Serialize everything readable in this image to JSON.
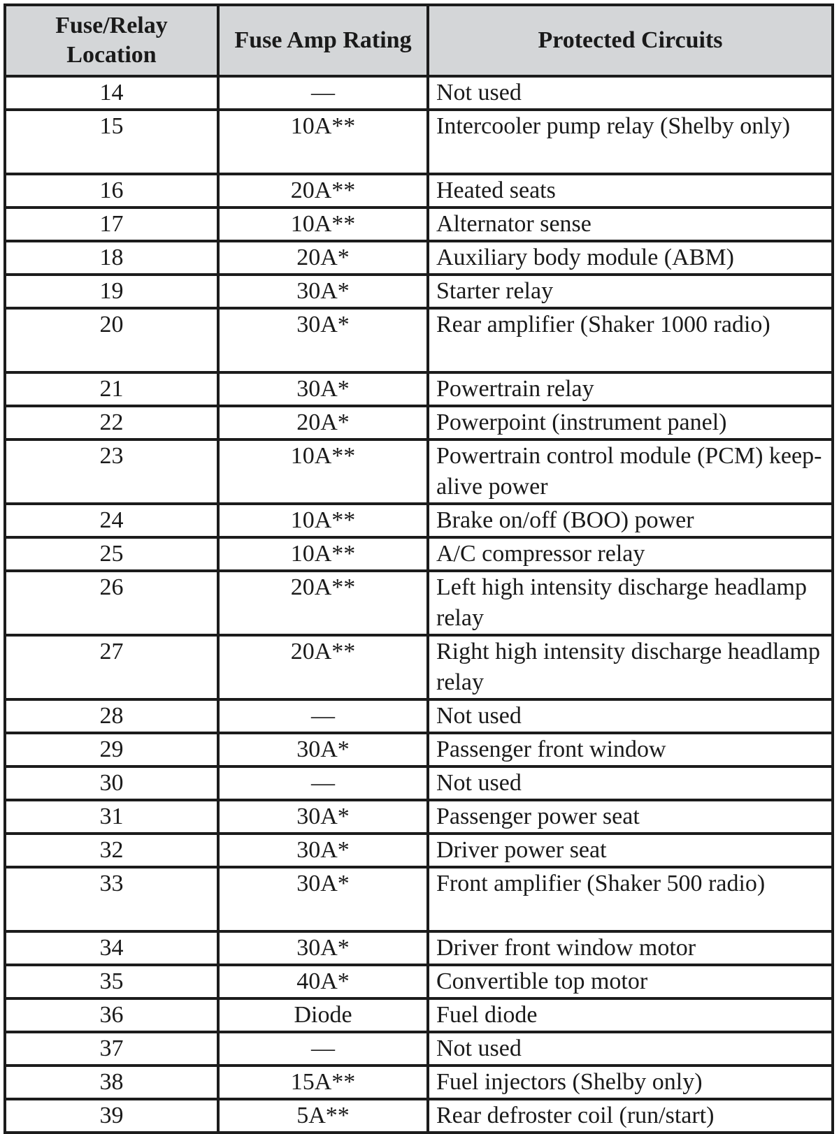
{
  "table": {
    "headers": [
      "Fuse/Relay Location",
      "Fuse Amp Rating",
      "Protected Circuits"
    ],
    "header_color": "#d4d6d8",
    "rows": [
      {
        "location": "14",
        "rating": "—",
        "circuit": "Not used"
      },
      {
        "location": "15",
        "rating": "10A**",
        "circuit": "Intercooler pump relay (Shelby only)"
      },
      {
        "location": "16",
        "rating": "20A**",
        "circuit": "Heated seats"
      },
      {
        "location": "17",
        "rating": "10A**",
        "circuit": "Alternator sense"
      },
      {
        "location": "18",
        "rating": "20A*",
        "circuit": "Auxiliary body module (ABM)"
      },
      {
        "location": "19",
        "rating": "30A*",
        "circuit": "Starter relay"
      },
      {
        "location": "20",
        "rating": "30A*",
        "circuit": "Rear amplifier (Shaker 1000 radio)"
      },
      {
        "location": "21",
        "rating": "30A*",
        "circuit": "Powertrain relay"
      },
      {
        "location": "22",
        "rating": "20A*",
        "circuit": "Powerpoint (instrument panel)"
      },
      {
        "location": "23",
        "rating": "10A**",
        "circuit": "Powertrain control module (PCM) keep-alive power"
      },
      {
        "location": "24",
        "rating": "10A**",
        "circuit": "Brake on/off (BOO) power"
      },
      {
        "location": "25",
        "rating": "10A**",
        "circuit": "A/C compressor relay"
      },
      {
        "location": "26",
        "rating": "20A**",
        "circuit": "Left high intensity discharge headlamp relay"
      },
      {
        "location": "27",
        "rating": "20A**",
        "circuit": "Right high intensity discharge headlamp relay"
      },
      {
        "location": "28",
        "rating": "—",
        "circuit": "Not used"
      },
      {
        "location": "29",
        "rating": "30A*",
        "circuit": "Passenger front window"
      },
      {
        "location": "30",
        "rating": "—",
        "circuit": "Not used"
      },
      {
        "location": "31",
        "rating": "30A*",
        "circuit": "Passenger power seat"
      },
      {
        "location": "32",
        "rating": "30A*",
        "circuit": "Driver power seat"
      },
      {
        "location": "33",
        "rating": "30A*",
        "circuit": "Front amplifier (Shaker 500 radio)"
      },
      {
        "location": "34",
        "rating": "30A*",
        "circuit": "Driver front window motor"
      },
      {
        "location": "35",
        "rating": "40A*",
        "circuit": "Convertible top motor"
      },
      {
        "location": "36",
        "rating": "Diode",
        "circuit": "Fuel diode"
      },
      {
        "location": "37",
        "rating": "—",
        "circuit": "Not used"
      },
      {
        "location": "38",
        "rating": "15A**",
        "circuit": "Fuel injectors (Shelby only)"
      },
      {
        "location": "39",
        "rating": "5A**",
        "circuit": "Rear defroster coil (run/start)"
      }
    ]
  }
}
